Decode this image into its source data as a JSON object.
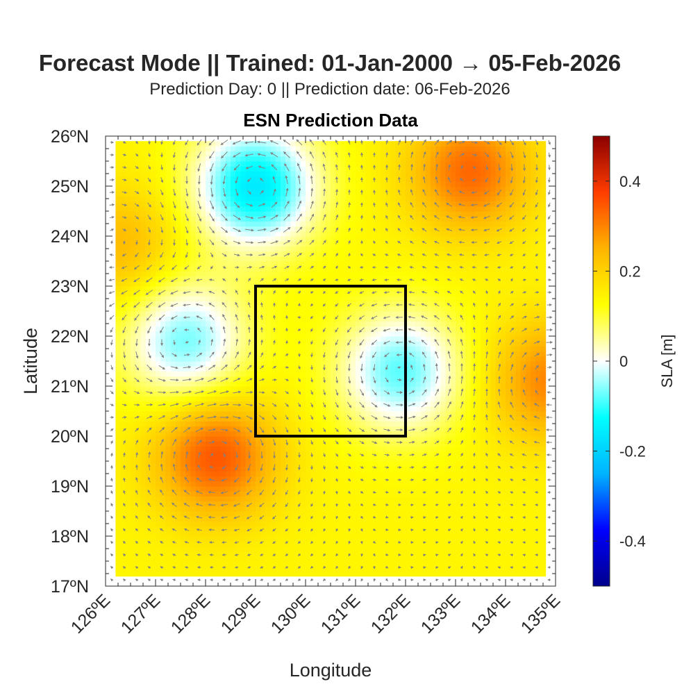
{
  "figure": {
    "title": "Forecast Mode || Trained: 01-Jan-2000 → 05-Feb-2026",
    "subtitle": "Prediction Day: 0 || Prediction date: 06-Feb-2026",
    "axes_title": "ESN Prediction Data"
  },
  "chart_data": {
    "type": "heatmap",
    "title": "ESN Prediction Data",
    "xlabel": "Longitude",
    "ylabel": "Latitude",
    "xlim": [
      126,
      135
    ],
    "ylim": [
      17,
      26
    ],
    "x_ticks": [
      126,
      127,
      128,
      129,
      130,
      131,
      132,
      133,
      134,
      135
    ],
    "x_tick_labels": [
      "126ºE",
      "127ºE",
      "128ºE",
      "129ºE",
      "130ºE",
      "131ºE",
      "132ºE",
      "133ºE",
      "134ºE",
      "135ºE"
    ],
    "y_ticks": [
      17,
      18,
      19,
      20,
      21,
      22,
      23,
      24,
      25,
      26
    ],
    "y_tick_labels": [
      "17ºN",
      "18ºN",
      "19ºN",
      "20ºN",
      "21ºN",
      "22ºN",
      "23ºN",
      "24ºN",
      "25ºN",
      "26ºN"
    ],
    "data_extent": {
      "lon": [
        126.2,
        134.8
      ],
      "lat": [
        17.2,
        25.9
      ]
    },
    "features": [
      {
        "kind": "cyclonic-low",
        "lon": 129.0,
        "lat": 25.0,
        "sla": -0.16
      },
      {
        "kind": "cyclonic-low",
        "lon": 127.6,
        "lat": 21.9,
        "sla": -0.07
      },
      {
        "kind": "cyclonic-low",
        "lon": 131.9,
        "lat": 21.3,
        "sla": -0.08
      },
      {
        "kind": "anticyclonic-high",
        "lon": 128.2,
        "lat": 19.6,
        "sla": 0.35
      },
      {
        "kind": "anticyclonic-high",
        "lon": 133.3,
        "lat": 25.3,
        "sla": 0.33
      },
      {
        "kind": "anticyclonic-high",
        "lon": 134.9,
        "lat": 21.1,
        "sla": 0.3
      },
      {
        "kind": "anticyclonic-high",
        "lon": 126.3,
        "lat": 23.8,
        "sla": 0.24
      }
    ],
    "background_sla": 0.14,
    "region_box": {
      "lon": [
        129,
        132
      ],
      "lat": [
        20,
        23
      ],
      "color": "#000000"
    },
    "vectors": {
      "type": "quiver",
      "color": "#808080",
      "spacing_deg": 0.25
    },
    "colorbar": {
      "label": "SLA [m]",
      "clim": [
        -0.5,
        0.5
      ],
      "ticks": [
        0.4,
        0.2,
        0,
        -0.2,
        -0.4
      ],
      "tick_labels": [
        "0.4",
        "0.2",
        "0",
        "-0.2",
        "-0.4"
      ],
      "colormap": "jet-like (dark blue → cyan → white → yellow → red → dark red)",
      "stops": [
        "#00008b",
        "#0000ff",
        "#00b4ff",
        "#00ffff",
        "#ffffff",
        "#ffff00",
        "#ffb400",
        "#ff3c00",
        "#8b0000"
      ]
    }
  }
}
